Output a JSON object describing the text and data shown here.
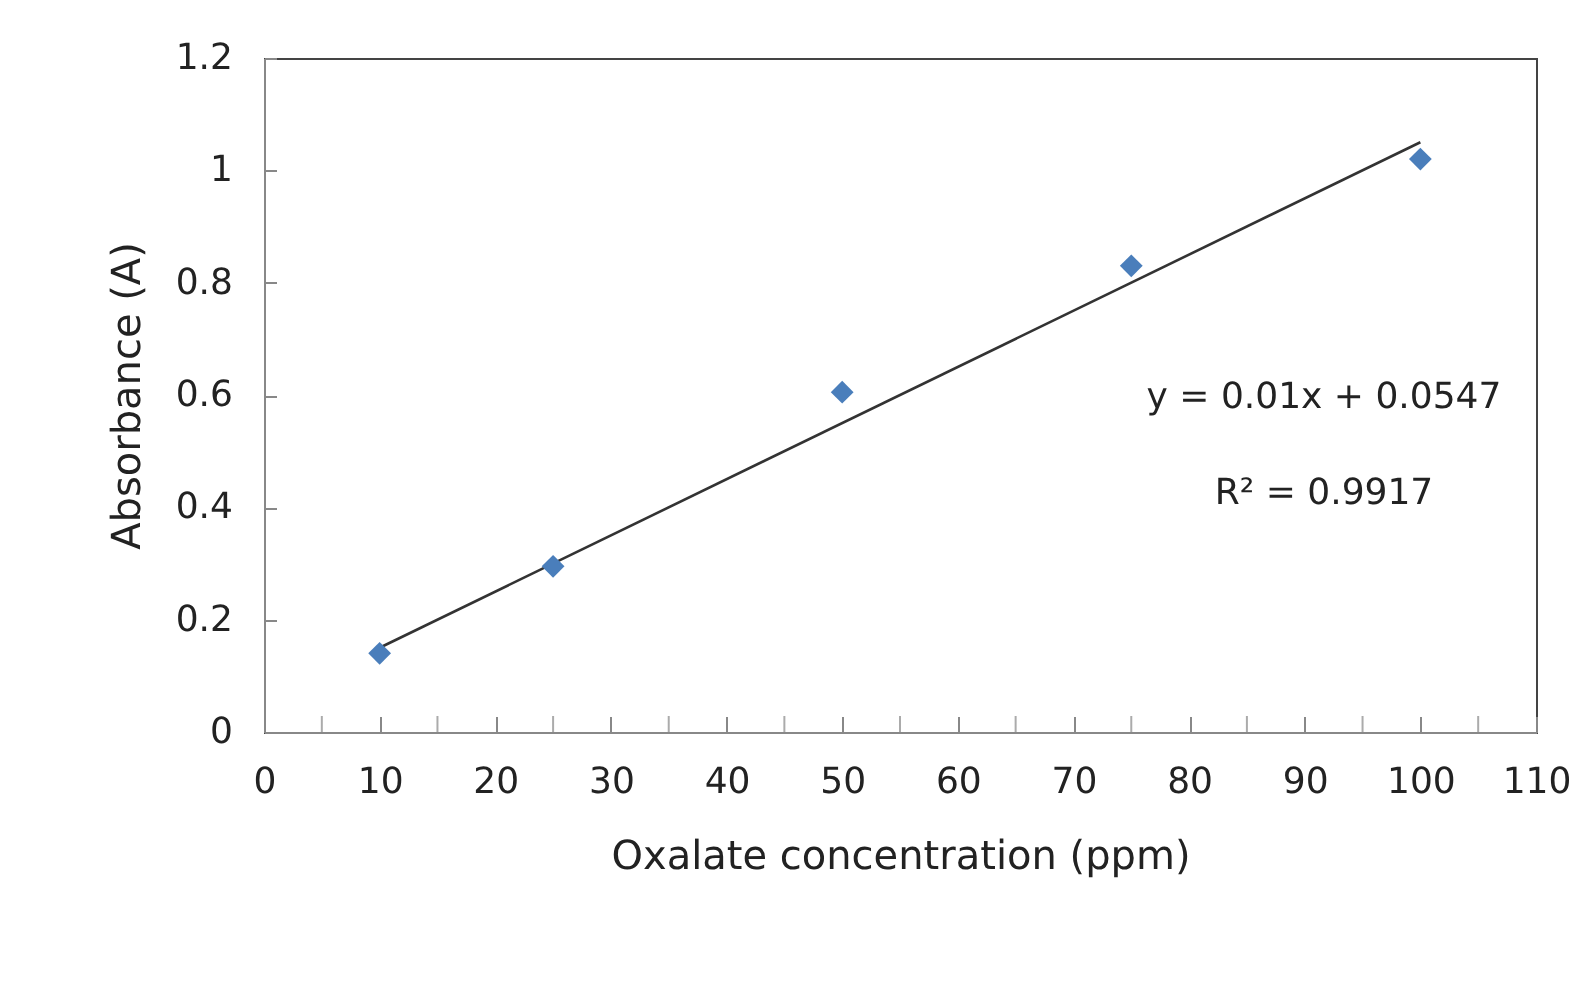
{
  "chart_data": {
    "type": "scatter",
    "xlabel": "Oxalate concentration (ppm)",
    "ylabel": "Absorbance (A)",
    "annotations": [
      "y = 0.01x + 0.0547",
      "R² = 0.9917"
    ],
    "xlim": [
      0,
      110
    ],
    "xticks": [
      0,
      {
        "value": 5,
        "label": null
      },
      10,
      {
        "value": 15,
        "label": null
      },
      20,
      {
        "value": 25,
        "label": null
      },
      30,
      {
        "value": 35,
        "label": null
      },
      40,
      {
        "value": 45,
        "label": null
      },
      50,
      {
        "value": 55,
        "label": null
      },
      60,
      {
        "value": 65,
        "label": null
      },
      70,
      {
        "value": 75,
        "label": null
      },
      80,
      {
        "value": 85,
        "label": null
      },
      90,
      {
        "value": 95,
        "label": null
      },
      100,
      {
        "value": 105,
        "label": null
      },
      110
    ],
    "ylim": [
      0,
      1.2
    ],
    "yticks": [
      0,
      0.2,
      0.4,
      0.6,
      0.8,
      1,
      1.2
    ],
    "grid": false,
    "series": [
      {
        "type": "scatter",
        "color": "#4a7ebb",
        "marker": "diamond",
        "x": [
          10,
          25,
          50,
          75,
          100
        ],
        "values": [
          0.14,
          0.295,
          0.605,
          0.83,
          1.02
        ]
      },
      {
        "type": "line",
        "color": "#333333",
        "marker": "none",
        "x": [
          10,
          100
        ],
        "values": [
          0.15,
          1.05
        ]
      }
    ]
  }
}
